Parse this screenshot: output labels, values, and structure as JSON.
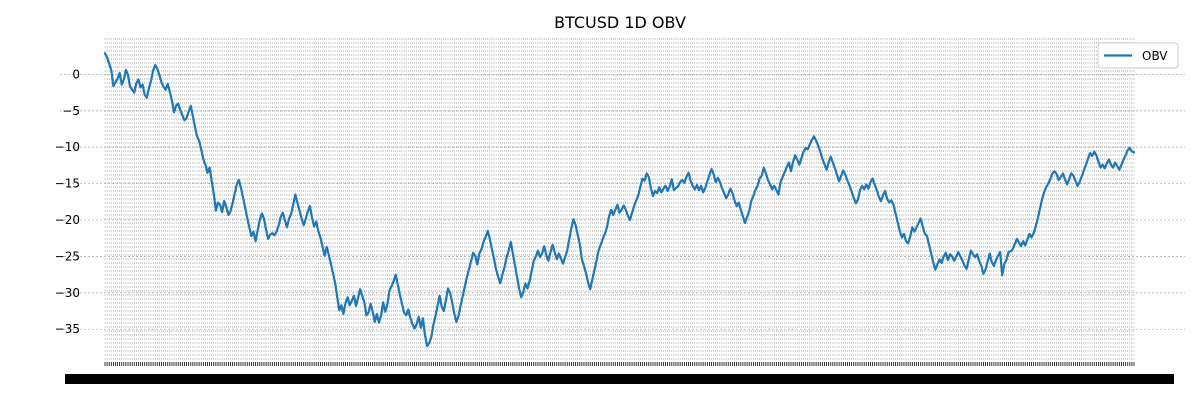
{
  "chart_data": {
    "type": "line",
    "title": "BTCUSD 1D OBV",
    "xlabel": "",
    "ylabel": "",
    "ylim": [
      -39.5,
      5
    ],
    "yticks": [
      0,
      -5,
      -10,
      -15,
      -20,
      -25,
      -30,
      -35
    ],
    "grid": true,
    "legend": "top-right",
    "line_color": "#1f77b4",
    "series": [
      {
        "name": "OBV",
        "values": [
          2.9,
          2.3,
          1.5,
          0.6,
          -1.6,
          -1.1,
          -0.6,
          0.2,
          -1.4,
          -0.7,
          0.6,
          -0.1,
          -1.7,
          -2.1,
          -2.5,
          -1.2,
          -0.7,
          -1.8,
          -1.4,
          -2.8,
          -3.2,
          -1.9,
          -0.9,
          0.5,
          1.3,
          0.8,
          -0.1,
          -1.1,
          -1.7,
          -2.1,
          -1.3,
          -2.4,
          -3.6,
          -5.2,
          -4.3,
          -4.0,
          -4.9,
          -5.6,
          -6.3,
          -6.0,
          -5.1,
          -4.3,
          -5.7,
          -7.2,
          -8.5,
          -9.1,
          -10.3,
          -11.6,
          -12.4,
          -13.5,
          -12.8,
          -14.6,
          -16.4,
          -18.7,
          -17.6,
          -17.9,
          -18.9,
          -17.4,
          -18.2,
          -19.3,
          -18.8,
          -17.7,
          -16.4,
          -15.1,
          -14.5,
          -15.6,
          -16.9,
          -18.3,
          -19.7,
          -21.0,
          -22.2,
          -21.6,
          -22.9,
          -21.4,
          -20.0,
          -19.1,
          -19.8,
          -21.3,
          -22.6,
          -22.0,
          -21.8,
          -22.1,
          -21.6,
          -20.8,
          -19.6,
          -19.0,
          -20.0,
          -21.0,
          -19.8,
          -19.2,
          -17.9,
          -16.5,
          -17.6,
          -18.7,
          -19.8,
          -20.7,
          -19.8,
          -18.8,
          -18.1,
          -19.7,
          -20.9,
          -20.2,
          -21.5,
          -22.4,
          -23.6,
          -24.9,
          -23.7,
          -24.8,
          -26.0,
          -27.3,
          -28.6,
          -30.5,
          -32.4,
          -31.7,
          -32.9,
          -31.4,
          -30.6,
          -31.7,
          -31.1,
          -30.4,
          -31.8,
          -30.7,
          -29.5,
          -30.4,
          -31.3,
          -33.1,
          -32.7,
          -31.5,
          -32.6,
          -34.0,
          -32.9,
          -34.1,
          -33.1,
          -31.3,
          -32.6,
          -31.6,
          -29.7,
          -29.1,
          -28.4,
          -27.5,
          -28.9,
          -30.3,
          -31.5,
          -32.7,
          -33.1,
          -32.3,
          -33.4,
          -34.3,
          -34.9,
          -34.3,
          -33.3,
          -34.8,
          -33.5,
          -35.8,
          -37.3,
          -36.9,
          -36.1,
          -34.4,
          -33.2,
          -31.8,
          -30.4,
          -31.9,
          -32.5,
          -31.0,
          -29.4,
          -30.0,
          -31.3,
          -32.8,
          -34.0,
          -33.2,
          -31.8,
          -30.5,
          -29.2,
          -27.9,
          -26.8,
          -25.7,
          -24.5,
          -24.9,
          -26.1,
          -24.6,
          -24.0,
          -23.0,
          -22.3,
          -21.5,
          -22.6,
          -24.0,
          -25.3,
          -26.8,
          -27.8,
          -28.7,
          -27.5,
          -26.5,
          -25.2,
          -24.2,
          -23.0,
          -24.6,
          -26.2,
          -27.8,
          -29.4,
          -30.6,
          -29.9,
          -28.7,
          -29.4,
          -28.4,
          -27.0,
          -25.6,
          -25.0,
          -24.2,
          -25.1,
          -24.6,
          -23.6,
          -24.8,
          -25.6,
          -24.4,
          -23.4,
          -24.4,
          -25.4,
          -24.6,
          -25.3,
          -26.0,
          -25.1,
          -24.2,
          -22.6,
          -21.1,
          -19.9,
          -20.7,
          -22.0,
          -23.3,
          -25.4,
          -26.3,
          -27.3,
          -28.6,
          -29.5,
          -28.2,
          -26.9,
          -25.6,
          -24.2,
          -23.4,
          -22.6,
          -21.9,
          -21.0,
          -19.5,
          -18.6,
          -19.3,
          -18.6,
          -17.9,
          -19.0,
          -18.6,
          -18.0,
          -18.6,
          -19.4,
          -20.0,
          -19.0,
          -18.1,
          -17.3,
          -16.6,
          -15.4,
          -14.3,
          -14.6,
          -13.6,
          -14.1,
          -15.6,
          -16.7,
          -16.0,
          -16.3,
          -15.5,
          -16.2,
          -15.7,
          -15.3,
          -16.0,
          -15.4,
          -14.4,
          -15.9,
          -15.6,
          -15.4,
          -14.8,
          -14.5,
          -14.9,
          -14.1,
          -13.5,
          -14.6,
          -15.3,
          -15.8,
          -15.2,
          -15.9,
          -15.3,
          -16.2,
          -15.6,
          -14.7,
          -13.8,
          -13.0,
          -13.7,
          -14.8,
          -14.2,
          -14.8,
          -15.6,
          -16.3,
          -17.0,
          -16.5,
          -15.7,
          -16.3,
          -17.3,
          -18.1,
          -17.6,
          -18.6,
          -19.5,
          -20.4,
          -19.6,
          -18.8,
          -17.4,
          -16.7,
          -15.9,
          -15.3,
          -14.3,
          -13.9,
          -12.8,
          -13.6,
          -14.5,
          -15.1,
          -15.8,
          -15.3,
          -15.9,
          -16.5,
          -14.8,
          -14.1,
          -13.4,
          -12.7,
          -12.1,
          -13.3,
          -12.0,
          -11.1,
          -11.7,
          -12.4,
          -11.5,
          -10.6,
          -10.1,
          -10.3,
          -9.6,
          -9.0,
          -8.5,
          -9.1,
          -9.8,
          -10.6,
          -11.6,
          -12.3,
          -13.1,
          -12.1,
          -11.3,
          -12.1,
          -12.9,
          -13.8,
          -14.7,
          -13.9,
          -13.2,
          -13.8,
          -14.6,
          -15.3,
          -16.1,
          -17.0,
          -17.7,
          -17.2,
          -15.9,
          -15.3,
          -15.8,
          -15.1,
          -15.7,
          -14.8,
          -14.3,
          -15.1,
          -15.9,
          -16.8,
          -17.4,
          -16.6,
          -16.0,
          -17.1,
          -17.6,
          -17.3,
          -17.9,
          -19.1,
          -20.3,
          -21.5,
          -22.4,
          -21.9,
          -22.9,
          -23.2,
          -22.3,
          -21.0,
          -21.6,
          -21.0,
          -20.4,
          -19.8,
          -20.9,
          -21.9,
          -22.2,
          -23.4,
          -24.6,
          -25.8,
          -26.8,
          -26.1,
          -25.4,
          -25.9,
          -25.0,
          -24.5,
          -25.5,
          -24.7,
          -25.0,
          -25.6,
          -25.0,
          -24.4,
          -25.0,
          -25.6,
          -26.3,
          -26.7,
          -25.4,
          -24.2,
          -24.7,
          -25.1,
          -24.7,
          -25.6,
          -26.3,
          -27.4,
          -26.8,
          -25.7,
          -24.6,
          -25.8,
          -26.3,
          -25.5,
          -24.9,
          -24.4,
          -27.6,
          -26.0,
          -25.5,
          -24.4,
          -24.3,
          -24.0,
          -23.3,
          -22.6,
          -23.1,
          -23.6,
          -22.9,
          -23.5,
          -22.7,
          -21.9,
          -22.4,
          -21.8,
          -20.9,
          -19.8,
          -18.5,
          -17.2,
          -16.2,
          -15.5,
          -15.0,
          -14.4,
          -13.6,
          -13.3,
          -13.7,
          -14.5,
          -14.1,
          -13.6,
          -14.4,
          -15.1,
          -14.4,
          -13.6,
          -13.9,
          -14.6,
          -15.3,
          -14.8,
          -14.0,
          -13.2,
          -12.4,
          -11.6,
          -10.8,
          -11.2,
          -10.6,
          -11.1,
          -12.0,
          -12.8,
          -12.4,
          -12.9,
          -12.2,
          -11.7,
          -12.4,
          -12.8,
          -12.1,
          -12.6,
          -13.1,
          -12.4,
          -11.7,
          -11.1,
          -10.4,
          -10.1,
          -10.6,
          -10.7
        ]
      }
    ],
    "legend_entries": [
      "OBV"
    ]
  }
}
